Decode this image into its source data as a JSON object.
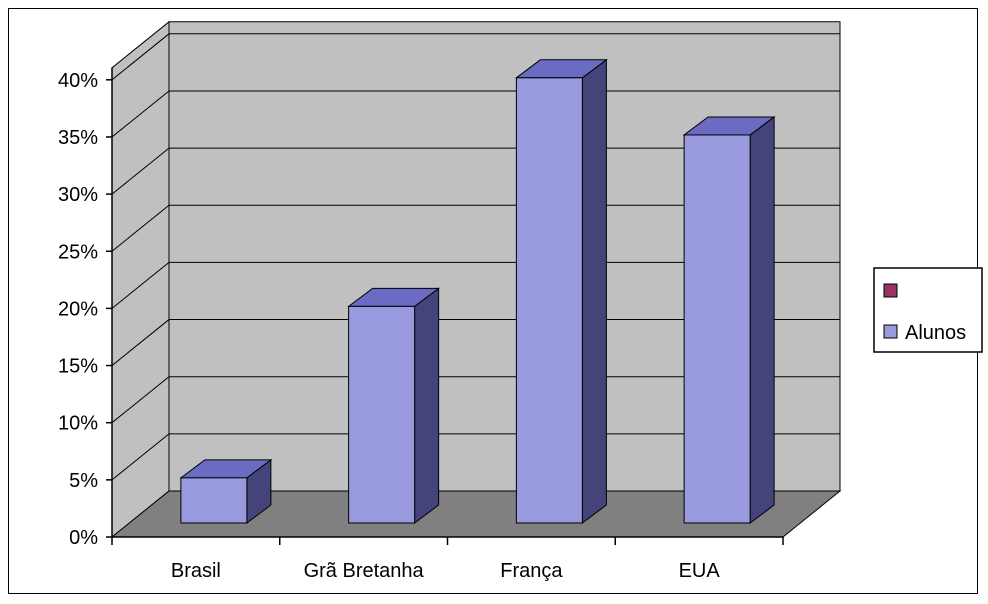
{
  "chart_data": {
    "type": "bar",
    "categories": [
      "Brasil",
      "Grã Bretanha",
      "França",
      "EUA"
    ],
    "series": [
      {
        "name": "",
        "values": [
          null,
          null,
          null,
          null
        ],
        "color": "#993366"
      },
      {
        "name": "Alunos",
        "values": [
          5,
          20,
          40,
          35
        ],
        "color": "#9999dd"
      }
    ],
    "y_ticks": [
      "0%",
      "5%",
      "10%",
      "15%",
      "20%",
      "25%",
      "30%",
      "35%",
      "40%"
    ],
    "ylim": [
      0,
      40
    ],
    "y_unit": "%",
    "grid": true,
    "legend_position": "right",
    "three_d": true,
    "colors": {
      "wall": "#c0c0c0",
      "floor": "#808080",
      "bar_front": "#9999dd",
      "bar_top": "#6b6bc4",
      "bar_side": "#44447a"
    }
  }
}
